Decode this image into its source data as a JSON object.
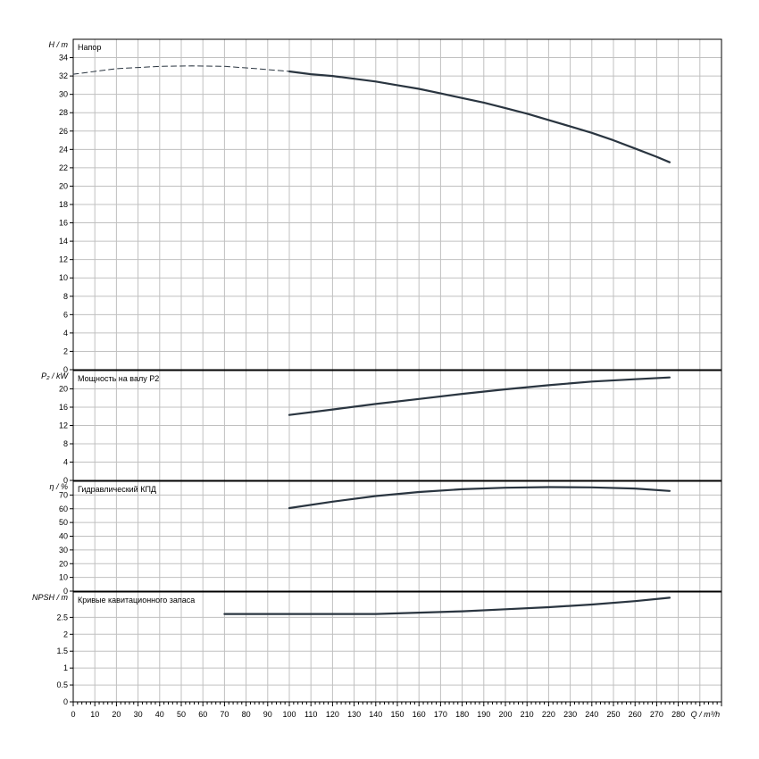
{
  "chart_data": {
    "type": "line",
    "x_axis": {
      "label": "Q / m³/h",
      "range": [
        0,
        300
      ],
      "tick_labels": [
        "0",
        "10",
        "20",
        "30",
        "40",
        "50",
        "60",
        "70",
        "80",
        "90",
        "100",
        "110",
        "120",
        "130",
        "140",
        "150",
        "160",
        "170",
        "180",
        "190",
        "200",
        "210",
        "220",
        "230",
        "240",
        "250",
        "260",
        "270",
        "280"
      ],
      "tick_values": [
        0,
        10,
        20,
        30,
        40,
        50,
        60,
        70,
        80,
        90,
        100,
        110,
        120,
        130,
        140,
        150,
        160,
        170,
        180,
        190,
        200,
        210,
        220,
        230,
        240,
        250,
        260,
        270,
        280
      ]
    },
    "grid": true,
    "panels": [
      {
        "id": "head",
        "title": "Напор",
        "ylabel": "H / m",
        "ylim": [
          0,
          36
        ],
        "yticks": [
          0,
          2,
          4,
          6,
          8,
          10,
          12,
          14,
          16,
          18,
          20,
          22,
          24,
          26,
          28,
          30,
          32,
          34
        ],
        "ytick_labels": [
          "0",
          "2",
          "4",
          "6",
          "8",
          "10",
          "12",
          "14",
          "16",
          "18",
          "20",
          "22",
          "24",
          "26",
          "28",
          "30",
          "32",
          "34"
        ],
        "series": [
          {
            "style": "dashed",
            "x": [
              0,
              20,
              40,
              55,
              70,
              85,
              100
            ],
            "y": [
              32.2,
              32.8,
              33.05,
              33.1,
              33.05,
              32.8,
              32.5
            ]
          },
          {
            "style": "solid",
            "x": [
              100,
              110,
              120,
              130,
              140,
              150,
              160,
              170,
              180,
              190,
              200,
              210,
              220,
              230,
              240,
              250,
              260,
              270,
              276
            ],
            "y": [
              32.5,
              32.2,
              32.0,
              31.7,
              31.4,
              31.0,
              30.6,
              30.1,
              29.6,
              29.1,
              28.5,
              27.9,
              27.2,
              26.5,
              25.8,
              25.0,
              24.1,
              23.2,
              22.6
            ]
          }
        ]
      },
      {
        "id": "power",
        "title": "Мощность на валу P2",
        "ylabel": "P₂ / kW",
        "ylim": [
          0,
          24
        ],
        "yticks": [
          0,
          4,
          8,
          12,
          16,
          20
        ],
        "ytick_labels": [
          "0",
          "4",
          "8",
          "12",
          "16",
          "20"
        ],
        "series": [
          {
            "style": "solid",
            "x": [
              100,
              120,
              140,
              160,
              180,
              200,
              220,
              240,
              260,
              276
            ],
            "y": [
              14.3,
              15.5,
              16.7,
              17.8,
              18.9,
              19.9,
              20.8,
              21.6,
              22.1,
              22.5
            ]
          }
        ]
      },
      {
        "id": "efficiency",
        "title": "Гидравлический КПД",
        "ylabel": "η / %",
        "ylim": [
          0,
          80
        ],
        "yticks": [
          0,
          10,
          20,
          30,
          40,
          50,
          60,
          70
        ],
        "ytick_labels": [
          "0",
          "10",
          "20",
          "30",
          "40",
          "50",
          "60",
          "70"
        ],
        "series": [
          {
            "style": "solid",
            "x": [
              100,
              120,
              140,
              160,
              180,
              200,
              220,
              240,
              260,
              276
            ],
            "y": [
              60.5,
              65.2,
              69.3,
              72.2,
              74.2,
              75.3,
              75.8,
              75.6,
              74.7,
              73.0
            ]
          }
        ]
      },
      {
        "id": "npsh",
        "title": "Кривые кавитационного запаса",
        "ylabel": "NPSH / m",
        "ylim": [
          0,
          3.25
        ],
        "yticks": [
          0,
          0.5,
          1,
          1.5,
          2,
          2.5
        ],
        "ytick_labels": [
          "0",
          "0.5",
          "1",
          "1.5",
          "2",
          "2.5"
        ],
        "series": [
          {
            "style": "solid",
            "x": [
              70,
              100,
              140,
              160,
              180,
              200,
              220,
              240,
              260,
              276
            ],
            "y": [
              2.6,
              2.6,
              2.6,
              2.64,
              2.68,
              2.74,
              2.8,
              2.88,
              2.98,
              3.08
            ]
          }
        ]
      }
    ]
  },
  "colors": {
    "curve": "#2a3540",
    "grid": "#c0c0c0",
    "frame": "#000000"
  }
}
